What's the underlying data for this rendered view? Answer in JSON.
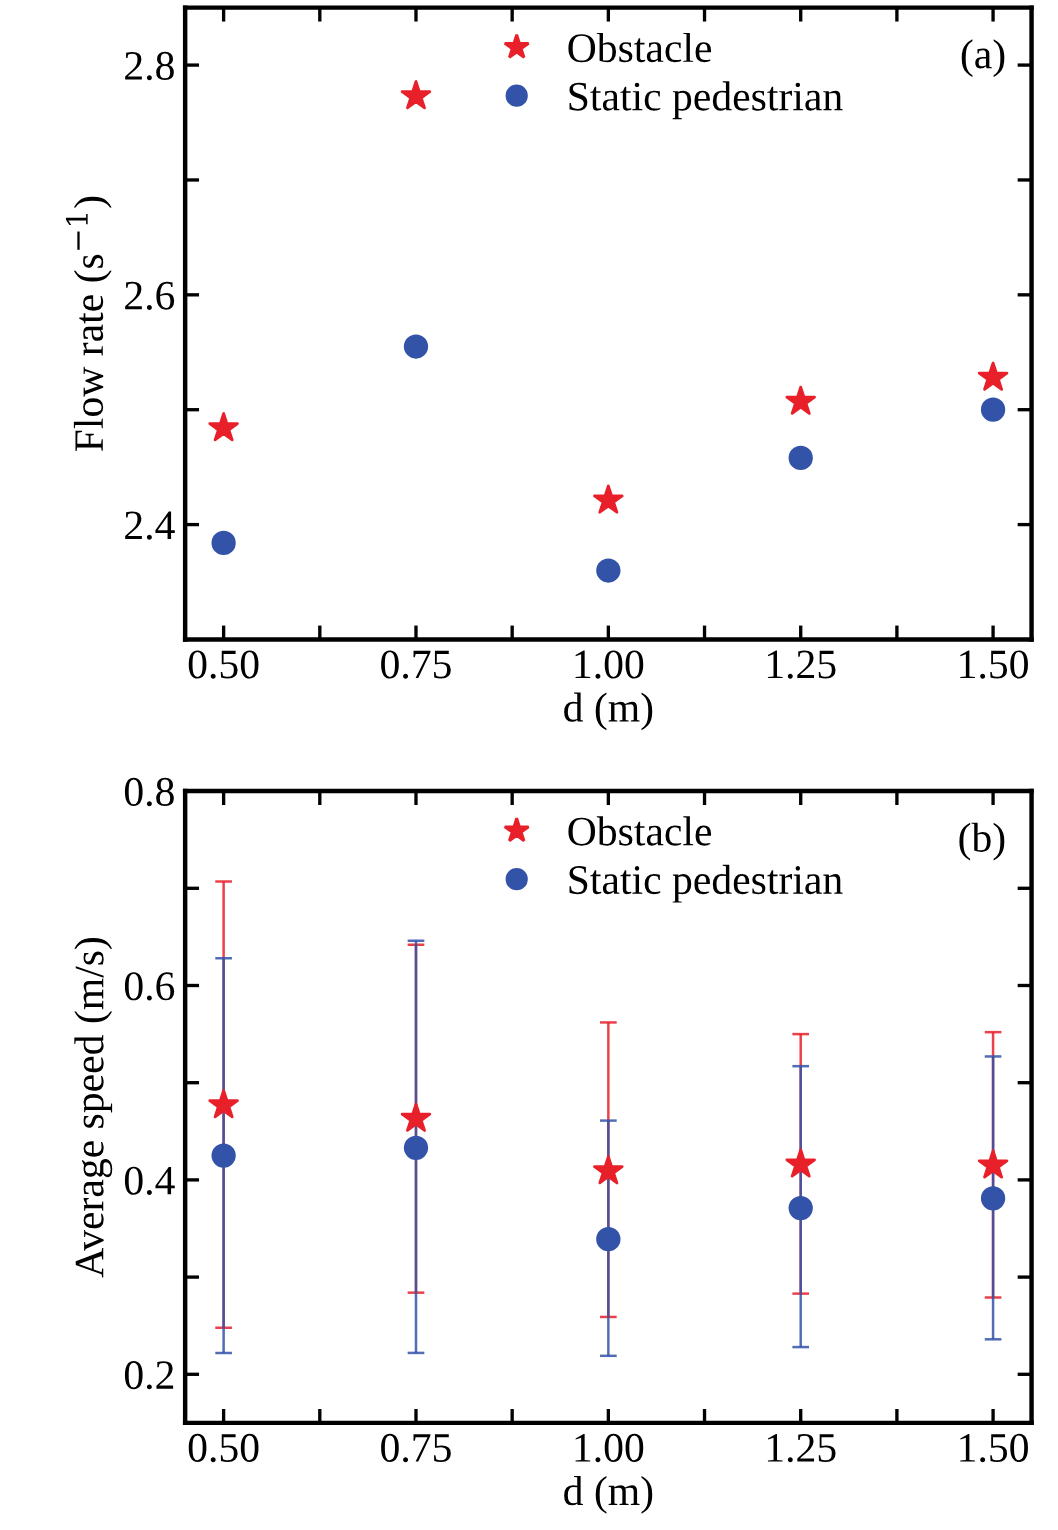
{
  "chart_data": [
    {
      "type": "scatter",
      "ylabel": "Flow rate (s$^{−1}$)",
      "xlabel": "d (m)",
      "annotations": [
        "(a)"
      ],
      "x": [
        0.5,
        0.75,
        1.0,
        1.25,
        1.5
      ],
      "series": [
        {
          "name": "Obstacle",
          "color": "#e8202a",
          "marker": "star",
          "values": [
            2.484,
            2.773,
            2.421,
            2.507,
            2.528
          ]
        },
        {
          "name": "Static pedestrian",
          "color": "#3353a8",
          "marker": "circle",
          "values": [
            2.384,
            2.555,
            2.36,
            2.458,
            2.5
          ]
        }
      ],
      "xlim": [
        0.45,
        1.55
      ],
      "ylim": [
        2.3,
        2.85
      ],
      "xticks": [
        {
          "value": 0.5,
          "label": "0.50"
        },
        {
          "value": 0.625,
          "label": null
        },
        {
          "value": 0.75,
          "label": "0.75"
        },
        {
          "value": 0.875,
          "label": null
        },
        {
          "value": 1.0,
          "label": "1.00"
        },
        {
          "value": 1.125,
          "label": null
        },
        {
          "value": 1.25,
          "label": "1.25"
        },
        {
          "value": 1.375,
          "label": null
        },
        {
          "value": 1.5,
          "label": "1.50"
        }
      ],
      "yticks": [
        {
          "value": 2.4,
          "label": "2.4"
        },
        {
          "value": 2.5,
          "label": null
        },
        {
          "value": 2.6,
          "label": "2.6"
        },
        {
          "value": 2.7,
          "label": null
        },
        {
          "value": 2.8,
          "label": "2.8"
        }
      ],
      "legend": "top",
      "grid": false
    },
    {
      "type": "scatter",
      "ylabel": "Average speed (m/s)",
      "xlabel": "d (m)",
      "annotations": [
        "(b)"
      ],
      "x": [
        0.5,
        0.75,
        1.0,
        1.25,
        1.5
      ],
      "series": [
        {
          "name": "Obstacle",
          "color": "#e8202a",
          "marker": "star",
          "values": [
            0.477,
            0.463,
            0.409,
            0.416,
            0.415
          ],
          "errors": [
            [
              0.248,
              0.707
            ],
            [
              0.284,
              0.642
            ],
            [
              0.259,
              0.562
            ],
            [
              0.283,
              0.55
            ],
            [
              0.279,
              0.552
            ]
          ]
        },
        {
          "name": "Static pedestrian",
          "color": "#3353a8",
          "marker": "circle",
          "values": [
            0.425,
            0.433,
            0.339,
            0.371,
            0.381
          ],
          "errors": [
            [
              0.222,
              0.628
            ],
            [
              0.222,
              0.646
            ],
            [
              0.219,
              0.461
            ],
            [
              0.228,
              0.517
            ],
            [
              0.236,
              0.527
            ]
          ]
        }
      ],
      "xlim": [
        0.45,
        1.55
      ],
      "ylim": [
        0.15,
        0.8
      ],
      "xticks": [
        {
          "value": 0.5,
          "label": "0.50"
        },
        {
          "value": 0.625,
          "label": null
        },
        {
          "value": 0.75,
          "label": "0.75"
        },
        {
          "value": 0.875,
          "label": null
        },
        {
          "value": 1.0,
          "label": "1.00"
        },
        {
          "value": 1.125,
          "label": null
        },
        {
          "value": 1.25,
          "label": "1.25"
        },
        {
          "value": 1.375,
          "label": null
        },
        {
          "value": 1.5,
          "label": "1.50"
        }
      ],
      "yticks": [
        {
          "value": 0.2,
          "label": "0.2"
        },
        {
          "value": 0.3,
          "label": null
        },
        {
          "value": 0.4,
          "label": "0.4"
        },
        {
          "value": 0.5,
          "label": null
        },
        {
          "value": 0.6,
          "label": "0.6"
        },
        {
          "value": 0.7,
          "label": null
        },
        {
          "value": 0.8,
          "label": "0.8"
        }
      ],
      "legend": "top",
      "grid": false
    }
  ]
}
